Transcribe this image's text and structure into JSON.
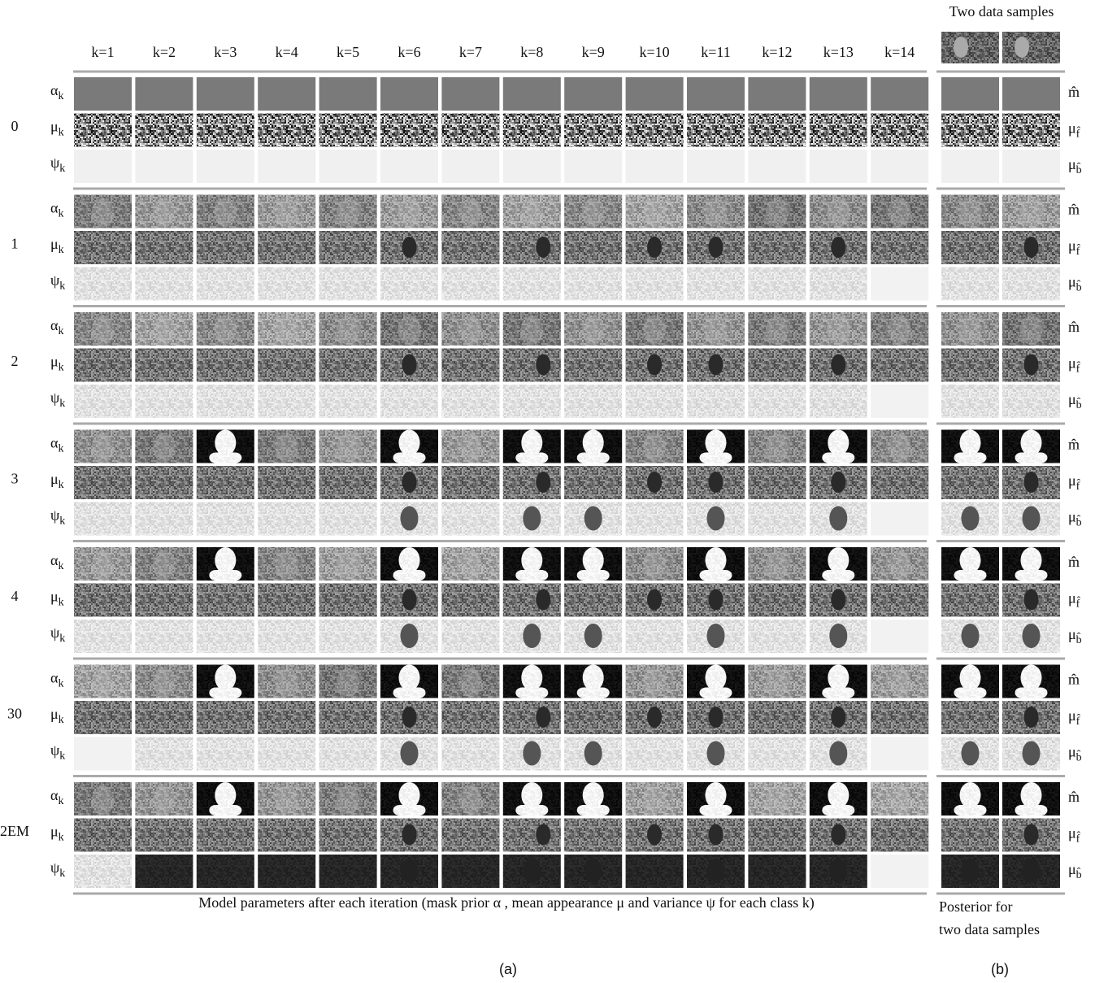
{
  "figure": {
    "sample_title": "Two data samples",
    "columns": [
      "k=1",
      "k=2",
      "k=3",
      "k=4",
      "k=5",
      "k=6",
      "k=7",
      "k=8",
      "k=9",
      "k=10",
      "k=11",
      "k=12",
      "k=13",
      "k=14"
    ],
    "iterations": [
      "0",
      "1",
      "2",
      "3",
      "4",
      "30",
      "2EM"
    ],
    "parameters": [
      {
        "symbol": "α",
        "subscript": "k"
      },
      {
        "symbol": "μ",
        "subscript": "k"
      },
      {
        "symbol": "ψ",
        "subscript": "k"
      }
    ],
    "posterior_labels": [
      {
        "symbol": "m̂",
        "subscript": ""
      },
      {
        "symbol": "μ",
        "subscript": "f̂"
      },
      {
        "symbol": "μ",
        "subscript": "b̂"
      }
    ],
    "caption": "Model parameters after each iteration (mask prior α , mean appearance μ and variance ψ  for each class k)",
    "posterior_caption": [
      "Posterior for",
      "two data samples"
    ],
    "panel_labels": [
      "(a)",
      "(b)"
    ]
  }
}
